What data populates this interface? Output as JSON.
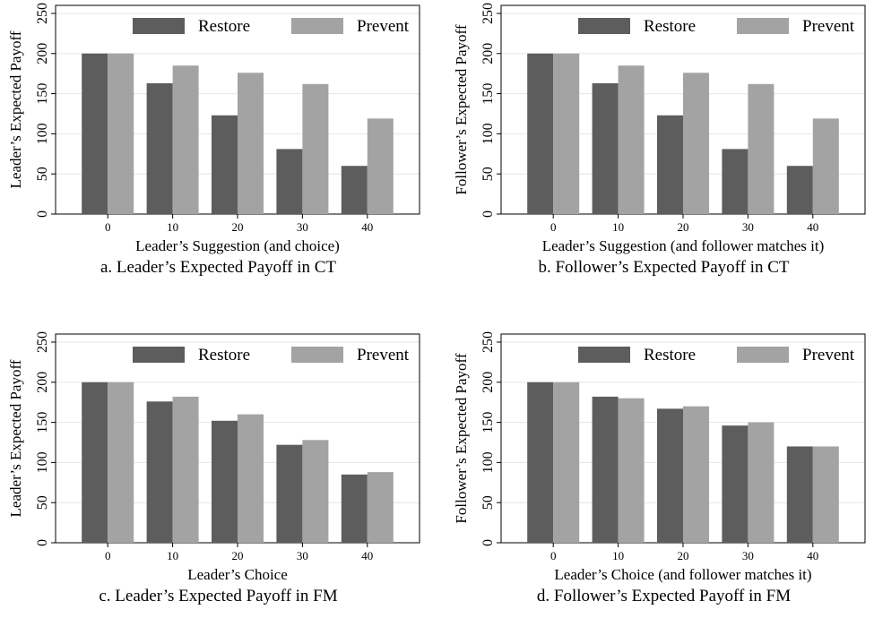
{
  "colors": {
    "restore": "#5d5d5d",
    "prevent": "#a3a3a3",
    "grid": "#e6e6e6",
    "axis": "#000000"
  },
  "chart_data": [
    {
      "type": "bar",
      "categories": [
        "0",
        "10",
        "20",
        "30",
        "40"
      ],
      "series": [
        {
          "name": "Restore",
          "values": [
            200,
            163,
            123,
            81,
            60
          ]
        },
        {
          "name": "Prevent",
          "values": [
            200,
            185,
            176,
            162,
            119
          ]
        }
      ],
      "ylabel": "Leader’s Expected Payoff",
      "xlabel": "Leader’s Suggestion (and choice)",
      "caption": "a. Leader’s Expected Payoff in CT",
      "ylim": [
        0,
        260
      ],
      "yticks": [
        "0",
        "50",
        "100",
        "150",
        "200",
        "250"
      ],
      "grid": true,
      "legend": "top"
    },
    {
      "type": "bar",
      "categories": [
        "0",
        "10",
        "20",
        "30",
        "40"
      ],
      "series": [
        {
          "name": "Restore",
          "values": [
            200,
            163,
            123,
            81,
            60
          ]
        },
        {
          "name": "Prevent",
          "values": [
            200,
            185,
            176,
            162,
            119
          ]
        }
      ],
      "ylabel": "Follower’s Expected Payoff",
      "xlabel": "Leader’s Suggestion (and follower matches it)",
      "caption": "b. Follower’s Expected Payoff in CT",
      "ylim": [
        0,
        260
      ],
      "yticks": [
        "0",
        "50",
        "100",
        "150",
        "200",
        "250"
      ],
      "grid": true,
      "legend": "top"
    },
    {
      "type": "bar",
      "categories": [
        "0",
        "10",
        "20",
        "30",
        "40"
      ],
      "series": [
        {
          "name": "Restore",
          "values": [
            200,
            176,
            152,
            122,
            85
          ]
        },
        {
          "name": "Prevent",
          "values": [
            200,
            182,
            160,
            128,
            88
          ]
        }
      ],
      "ylabel": "Leader’s Expected Payoff",
      "xlabel": "Leader’s Choice",
      "caption": "c. Leader’s Expected Payoff in FM",
      "ylim": [
        0,
        260
      ],
      "yticks": [
        "0",
        "50",
        "100",
        "150",
        "200",
        "250"
      ],
      "grid": true,
      "legend": "top"
    },
    {
      "type": "bar",
      "categories": [
        "0",
        "10",
        "20",
        "30",
        "40"
      ],
      "series": [
        {
          "name": "Restore",
          "values": [
            200,
            182,
            167,
            146,
            120
          ]
        },
        {
          "name": "Prevent",
          "values": [
            200,
            180,
            170,
            150,
            120
          ]
        }
      ],
      "ylabel": "Follower’s Expected Payoff",
      "xlabel": "Leader’s Choice (and follower matches it)",
      "caption": "d. Follower’s Expected Payoff in FM",
      "ylim": [
        0,
        260
      ],
      "yticks": [
        "0",
        "50",
        "100",
        "150",
        "200",
        "250"
      ],
      "grid": true,
      "legend": "top"
    }
  ]
}
